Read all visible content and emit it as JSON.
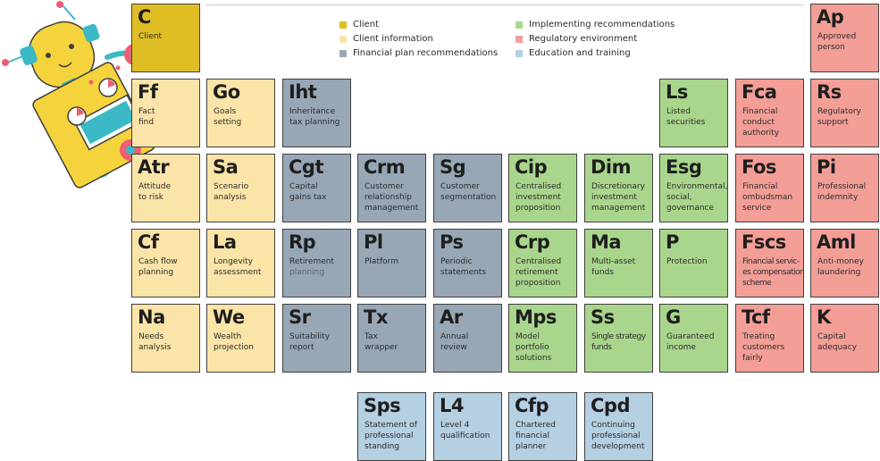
{
  "legend": [
    {
      "label": "Client",
      "color": "#dfbe25"
    },
    {
      "label": "Client information",
      "color": "#fbe4a8"
    },
    {
      "label": "Financial plan recommendations",
      "color": "#98a7b6"
    },
    {
      "label": "Implementing recommendations",
      "color": "#a9d68c"
    },
    {
      "label": "Regulatory environment",
      "color": "#f39e97"
    },
    {
      "label": "Education and training",
      "color": "#b5cfe3"
    }
  ],
  "elements": {
    "c": {
      "symbol": "C",
      "name": [
        "Client"
      ]
    },
    "ap": {
      "symbol": "Ap",
      "name": [
        "Approved",
        "person"
      ]
    },
    "ff": {
      "symbol": "Ff",
      "name": [
        "Fact",
        "find"
      ]
    },
    "go": {
      "symbol": "Go",
      "name": [
        "Goals",
        "setting"
      ]
    },
    "iht": {
      "symbol": "Iht",
      "name": [
        "Inheritance",
        "tax planning"
      ]
    },
    "ls": {
      "symbol": "Ls",
      "name": [
        "Listed",
        "securities"
      ]
    },
    "fca": {
      "symbol": "Fca",
      "name": [
        "Financial",
        "conduct",
        "authority"
      ]
    },
    "rs": {
      "symbol": "Rs",
      "name": [
        "Regulatory",
        "support"
      ]
    },
    "atr": {
      "symbol": "Atr",
      "name": [
        "Attitude",
        "to risk"
      ]
    },
    "sa": {
      "symbol": "Sa",
      "name": [
        "Scenario",
        "analysis"
      ]
    },
    "cgt": {
      "symbol": "Cgt",
      "name": [
        "Capital",
        "gains tax"
      ]
    },
    "crm": {
      "symbol": "Crm",
      "name": [
        "Customer",
        "relationship",
        "management"
      ]
    },
    "sg": {
      "symbol": "Sg",
      "name": [
        "Customer",
        "segmentation"
      ]
    },
    "cip": {
      "symbol": "Cip",
      "name": [
        "Centralised",
        "investment",
        "proposition"
      ]
    },
    "dim": {
      "symbol": "Dim",
      "name": [
        "Discretionary",
        "investment",
        "management"
      ]
    },
    "esg": {
      "symbol": "Esg",
      "name": [
        "Environmental,",
        "social,",
        "governance"
      ]
    },
    "fos": {
      "symbol": "Fos",
      "name": [
        "Financial",
        "ombudsman",
        "service"
      ]
    },
    "pi": {
      "symbol": "Pi",
      "name": [
        "Professional",
        "indemnity"
      ]
    },
    "cf": {
      "symbol": "Cf",
      "name": [
        "Cash flow",
        "planning"
      ]
    },
    "la": {
      "symbol": "La",
      "name": [
        "Longevity",
        "assessment"
      ]
    },
    "rp": {
      "symbol": "Rp",
      "name": [
        "Retirement",
        "planning"
      ]
    },
    "pl": {
      "symbol": "Pl",
      "name": [
        "Platform"
      ]
    },
    "ps": {
      "symbol": "Ps",
      "name": [
        "Periodic",
        "statements"
      ]
    },
    "crp": {
      "symbol": "Crp",
      "name": [
        "Centralised",
        "retirement",
        "proposition"
      ]
    },
    "ma": {
      "symbol": "Ma",
      "name": [
        "Multi-asset",
        "funds"
      ]
    },
    "p": {
      "symbol": "P",
      "name": [
        "Protection"
      ]
    },
    "fscs": {
      "symbol": "Fscs",
      "name": [
        "Financial servic-",
        "es compensation",
        "scheme"
      ]
    },
    "aml": {
      "symbol": "Aml",
      "name": [
        "Anti-money",
        "laundering"
      ]
    },
    "na": {
      "symbol": "Na",
      "name": [
        "Needs",
        "analysis"
      ]
    },
    "we": {
      "symbol": "We",
      "name": [
        "Wealth",
        "projection"
      ]
    },
    "sr": {
      "symbol": "Sr",
      "name": [
        "Suitability",
        "report"
      ]
    },
    "tx": {
      "symbol": "Tx",
      "name": [
        "Tax",
        "wrapper"
      ]
    },
    "ar": {
      "symbol": "Ar",
      "name": [
        "Annual",
        "review"
      ]
    },
    "mps": {
      "symbol": "Mps",
      "name": [
        "Model",
        "portfolio",
        "solutions"
      ]
    },
    "ss": {
      "symbol": "Ss",
      "name": [
        "Single strategy",
        "funds"
      ]
    },
    "g": {
      "symbol": "G",
      "name": [
        "Guaranteed",
        "income"
      ]
    },
    "tcf": {
      "symbol": "Tcf",
      "name": [
        "Treating",
        "customers",
        "fairly"
      ]
    },
    "k": {
      "symbol": "K",
      "name": [
        "Capital",
        "adequacy"
      ]
    },
    "sps": {
      "symbol": "Sps",
      "name": [
        "Statement of",
        "professional",
        "standing"
      ]
    },
    "l4": {
      "symbol": "L4",
      "name": [
        "Level 4",
        "qualification"
      ]
    },
    "cfp": {
      "symbol": "Cfp",
      "name": [
        "Chartered",
        "financial",
        "planner"
      ]
    },
    "cpd": {
      "symbol": "Cpd",
      "name": [
        "Continuing",
        "professional",
        "development"
      ]
    }
  },
  "colors": {
    "client": "#dfbe25",
    "info": "#fbe4a8",
    "plan": "#98a7b6",
    "impl": "#a9d68c",
    "reg": "#f39e97",
    "edu": "#b5cfe3",
    "robot_yellow": "#f5d33c",
    "robot_teal": "#3bb9c6",
    "robot_pink": "#ee5d72"
  },
  "icons": [
    "robot-illustration"
  ]
}
